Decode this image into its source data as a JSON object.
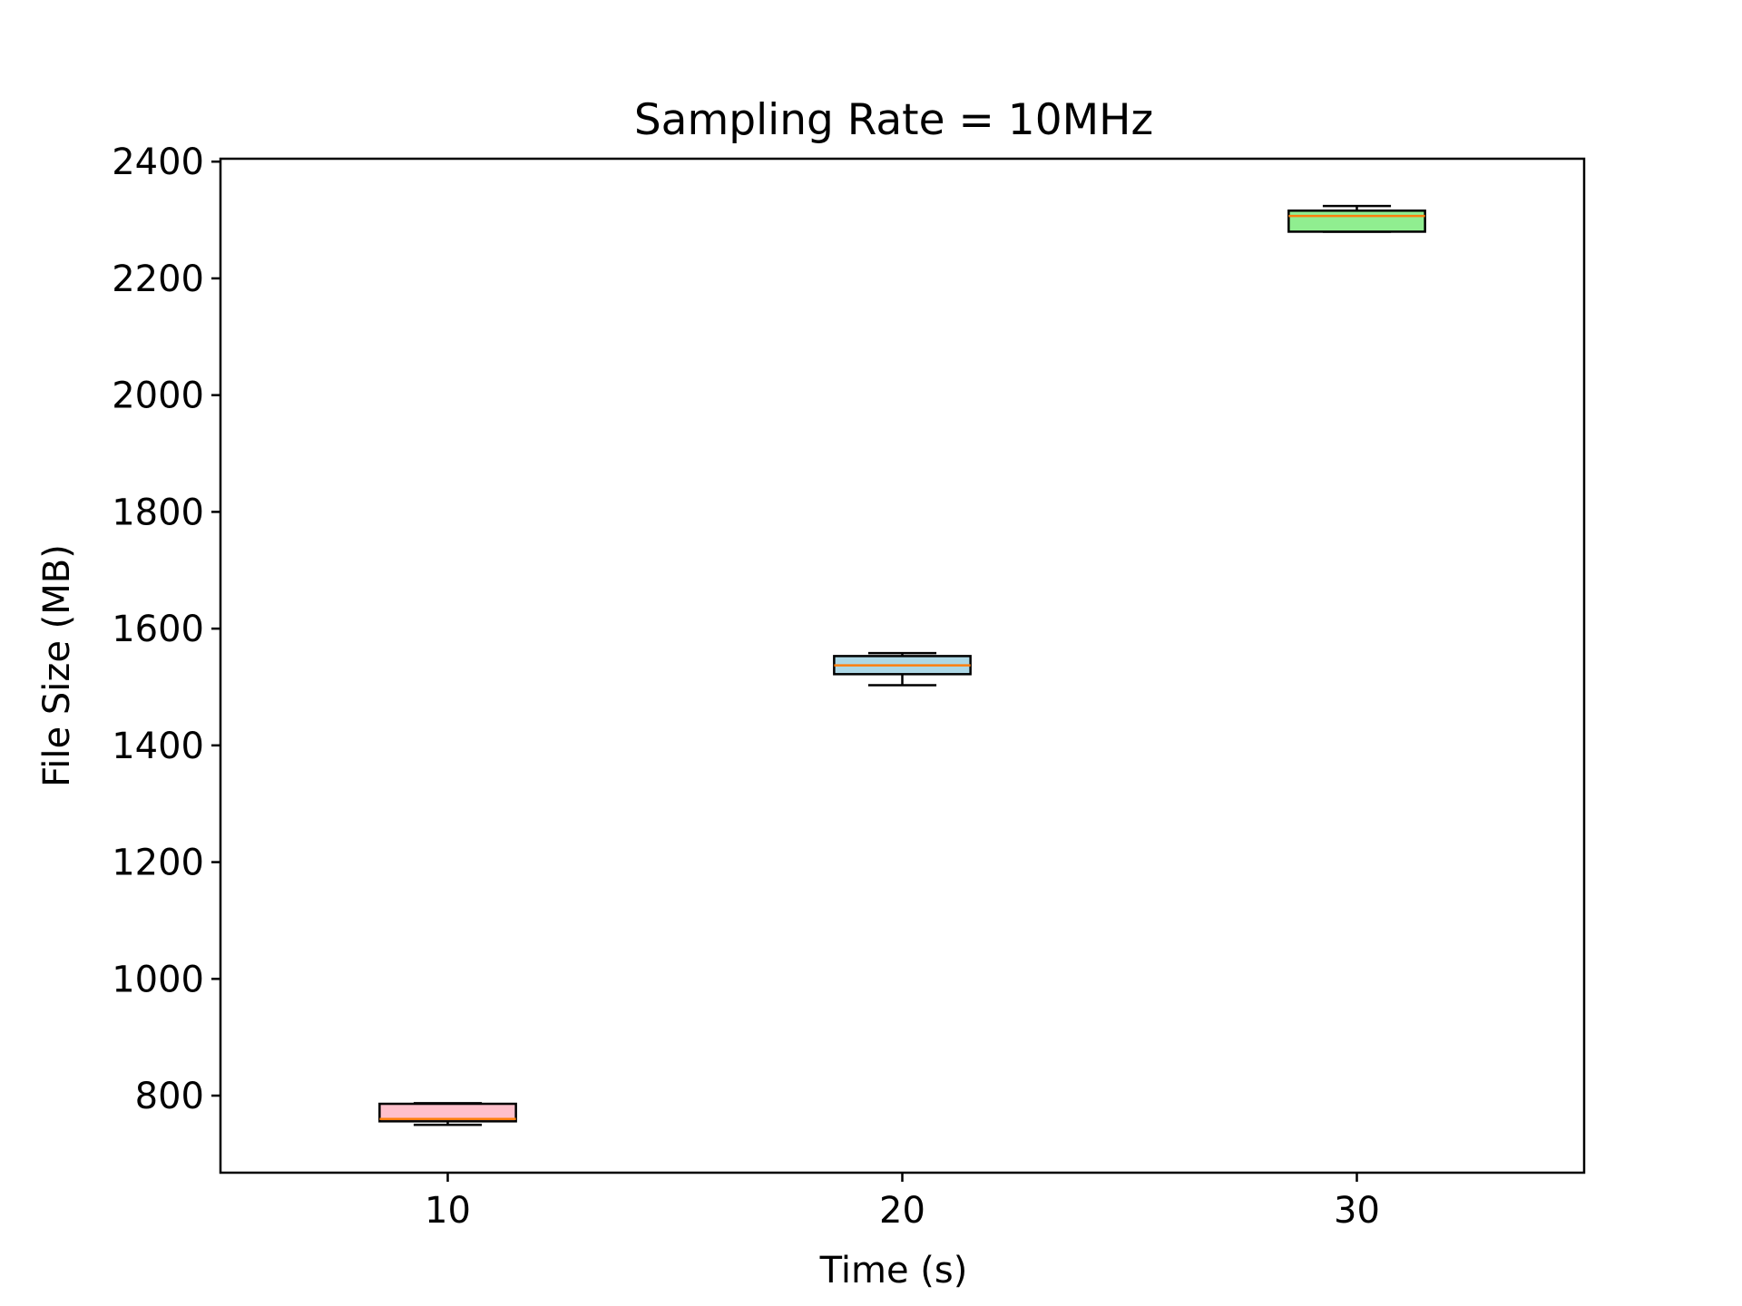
{
  "chart_data": {
    "type": "box",
    "title": "Sampling Rate = 10MHz",
    "xlabel": "Time (s)",
    "ylabel": "File Size (MB)",
    "xlim": [
      5,
      35
    ],
    "ylim": [
      668,
      2405
    ],
    "x_ticks": [
      10,
      20,
      30
    ],
    "y_ticks": [
      800,
      1000,
      1200,
      1400,
      1600,
      1800,
      2000,
      2200,
      2400
    ],
    "grid": false,
    "legend": "none",
    "box_width": 3,
    "boxes": [
      {
        "x": 10,
        "whisker_low": 750,
        "q1": 756,
        "median": 760,
        "q3": 786,
        "whisker_high": 787,
        "fill": "#ffc0cb"
      },
      {
        "x": 20,
        "whisker_low": 1503,
        "q1": 1522,
        "median": 1537,
        "q3": 1553,
        "whisker_high": 1558,
        "fill": "#add8e6"
      },
      {
        "x": 30,
        "whisker_low": 2280,
        "q1": 2280,
        "median": 2307,
        "q3": 2316,
        "whisker_high": 2324,
        "fill": "#90ee90"
      }
    ],
    "colors": {
      "median": "#ff7f0e",
      "outline": "#000000",
      "axes": "#000000"
    }
  }
}
